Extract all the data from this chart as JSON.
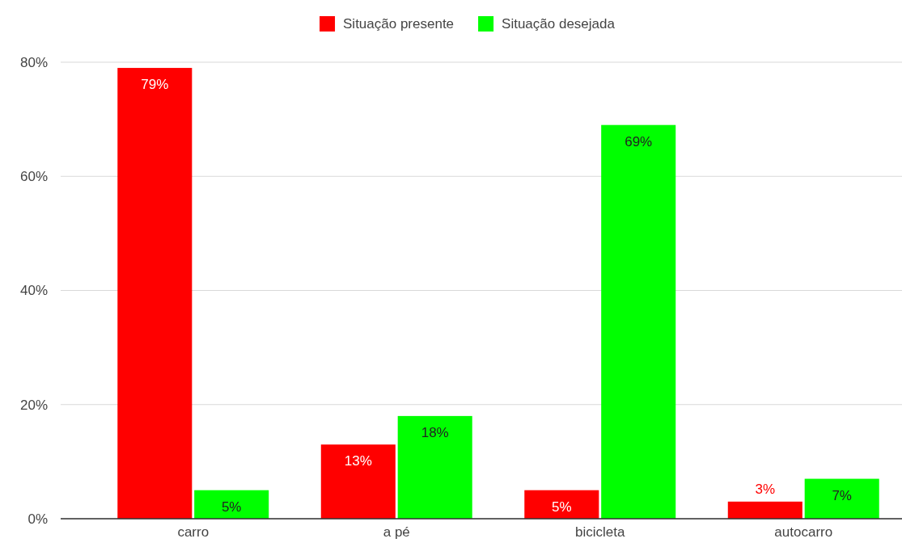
{
  "chart_data": {
    "type": "bar",
    "categories": [
      "carro",
      "a pé",
      "bicicleta",
      "autocarro"
    ],
    "series": [
      {
        "name": "Situação presente",
        "color": "#ff0000",
        "values": [
          79,
          13,
          5,
          3
        ],
        "value_labels": [
          "79%",
          "13%",
          "5%",
          "3%"
        ]
      },
      {
        "name": "Situação desejada",
        "color": "#00ff00",
        "values": [
          5,
          18,
          69,
          7
        ],
        "value_labels": [
          "5%",
          "18%",
          "69%",
          "7%"
        ]
      }
    ],
    "ylim": [
      0,
      80
    ],
    "yticks": [
      {
        "value": 0,
        "label": "0%"
      },
      {
        "value": 20,
        "label": "20%"
      },
      {
        "value": 40,
        "label": "40%"
      },
      {
        "value": 60,
        "label": "60%"
      },
      {
        "value": 80,
        "label": "80%"
      }
    ],
    "grid": "y",
    "legend": "top"
  }
}
